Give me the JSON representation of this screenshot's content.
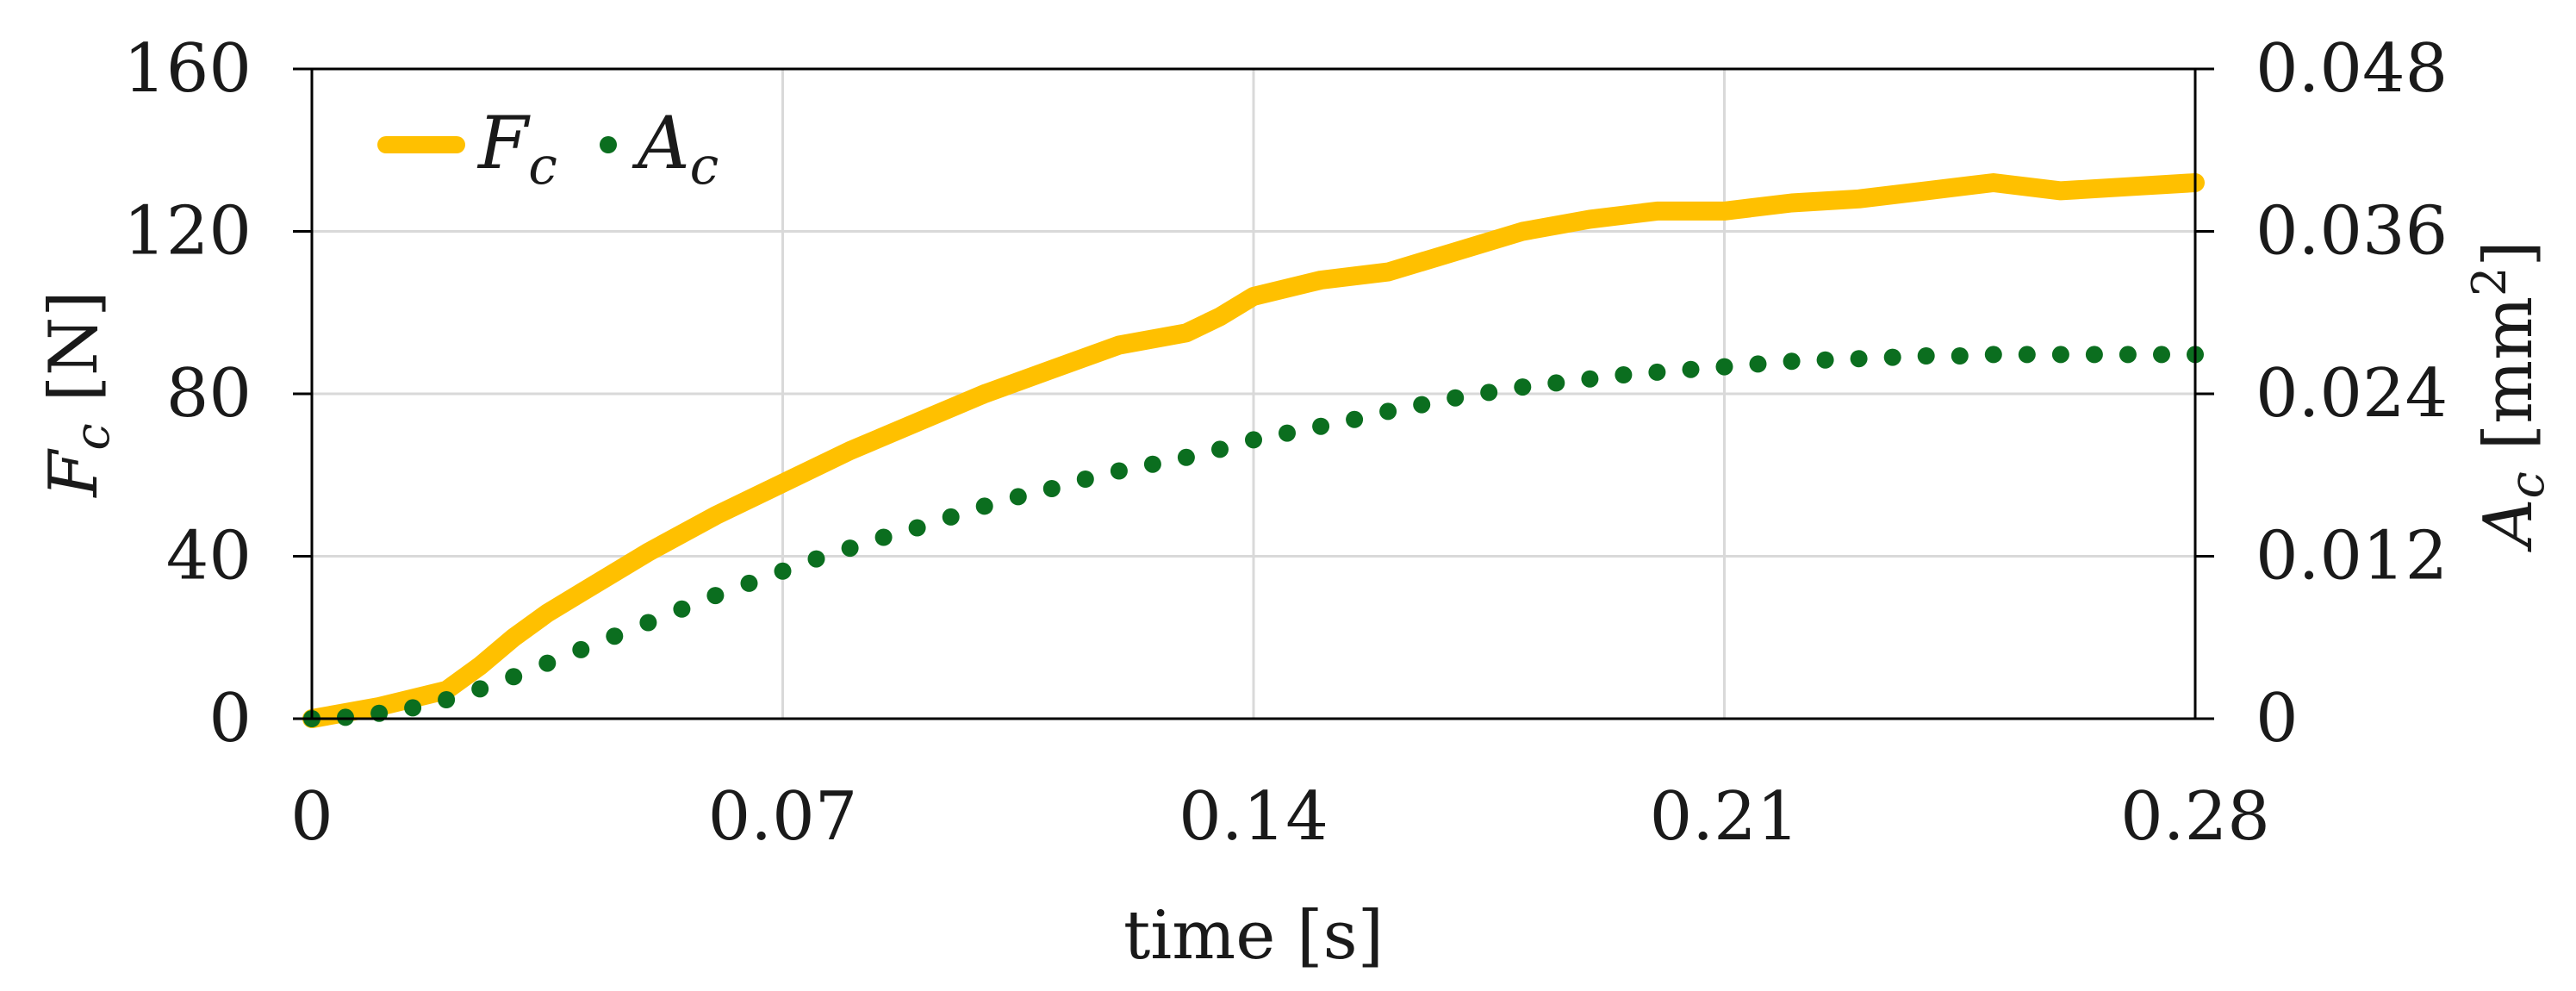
{
  "chart_data": {
    "type": "line",
    "xlabel": "time [s]",
    "ylabel_left": {
      "main": "F",
      "sub": "c",
      "unit": " [N]"
    },
    "ylabel_right": {
      "main": "A",
      "sub": "c",
      "unit_open": " [mm",
      "unit_sup": "2",
      "unit_close": "]"
    },
    "xlim": [
      0,
      0.28
    ],
    "ylim_left": [
      0,
      160
    ],
    "ylim_right": [
      0,
      0.048
    ],
    "x_ticks": [
      "0",
      "0.07",
      "0.14",
      "0.21",
      "0.28"
    ],
    "x_tick_values": [
      0,
      0.07,
      0.14,
      0.21,
      0.28
    ],
    "y_ticks_left": [
      "0",
      "40",
      "80",
      "120",
      "160"
    ],
    "y_tick_values_left": [
      0,
      40,
      80,
      120,
      160
    ],
    "y_ticks_right": [
      "0",
      "0.012",
      "0.024",
      "0.036",
      "0.048"
    ],
    "y_tick_values_right": [
      0,
      0.012,
      0.024,
      0.036,
      0.048
    ],
    "grid": true,
    "legend_position": "top-left",
    "series": [
      {
        "name": "F",
        "name_sub": "c",
        "style": "line",
        "axis": "left",
        "color": "#FFC000",
        "x": [
          0,
          0.01,
          0.02,
          0.025,
          0.03,
          0.035,
          0.04,
          0.05,
          0.06,
          0.07,
          0.08,
          0.09,
          0.1,
          0.11,
          0.12,
          0.13,
          0.135,
          0.14,
          0.15,
          0.16,
          0.17,
          0.18,
          0.19,
          0.2,
          0.21,
          0.22,
          0.23,
          0.24,
          0.25,
          0.26,
          0.27,
          0.28
        ],
        "y": [
          0,
          3,
          7,
          13,
          20,
          26,
          31,
          41,
          50,
          58,
          66,
          73,
          80,
          86,
          92,
          95,
          99,
          104,
          108,
          110,
          115,
          120,
          123,
          125,
          125,
          127,
          128,
          130,
          132,
          130,
          131,
          132
        ]
      },
      {
        "name": "A",
        "name_sub": "c",
        "style": "dots",
        "axis": "right",
        "color": "#0B6E1F",
        "x": [
          0,
          0.005,
          0.01,
          0.015,
          0.02,
          0.025,
          0.03,
          0.035,
          0.04,
          0.045,
          0.05,
          0.055,
          0.06,
          0.065,
          0.07,
          0.075,
          0.08,
          0.085,
          0.09,
          0.095,
          0.1,
          0.105,
          0.11,
          0.115,
          0.12,
          0.125,
          0.13,
          0.135,
          0.14,
          0.145,
          0.15,
          0.155,
          0.16,
          0.165,
          0.17,
          0.175,
          0.18,
          0.185,
          0.19,
          0.195,
          0.2,
          0.205,
          0.21,
          0.215,
          0.22,
          0.225,
          0.23,
          0.235,
          0.24,
          0.245,
          0.25,
          0.255,
          0.26,
          0.265,
          0.27,
          0.275,
          0.28
        ],
        "y": [
          0,
          0.0001,
          0.0004,
          0.0008,
          0.0014,
          0.0022,
          0.0031,
          0.0041,
          0.0051,
          0.0061,
          0.0071,
          0.0081,
          0.0091,
          0.01,
          0.0109,
          0.0118,
          0.0126,
          0.0134,
          0.0141,
          0.0149,
          0.0157,
          0.0164,
          0.017,
          0.0177,
          0.0183,
          0.0188,
          0.0193,
          0.0199,
          0.0206,
          0.0211,
          0.0216,
          0.0221,
          0.0227,
          0.0232,
          0.0237,
          0.0241,
          0.0245,
          0.0248,
          0.0251,
          0.0254,
          0.0256,
          0.0258,
          0.026,
          0.0262,
          0.0264,
          0.0265,
          0.0266,
          0.0267,
          0.0268,
          0.0268,
          0.0269,
          0.0269,
          0.0269,
          0.0269,
          0.0269,
          0.0269,
          0.0269
        ]
      }
    ]
  }
}
